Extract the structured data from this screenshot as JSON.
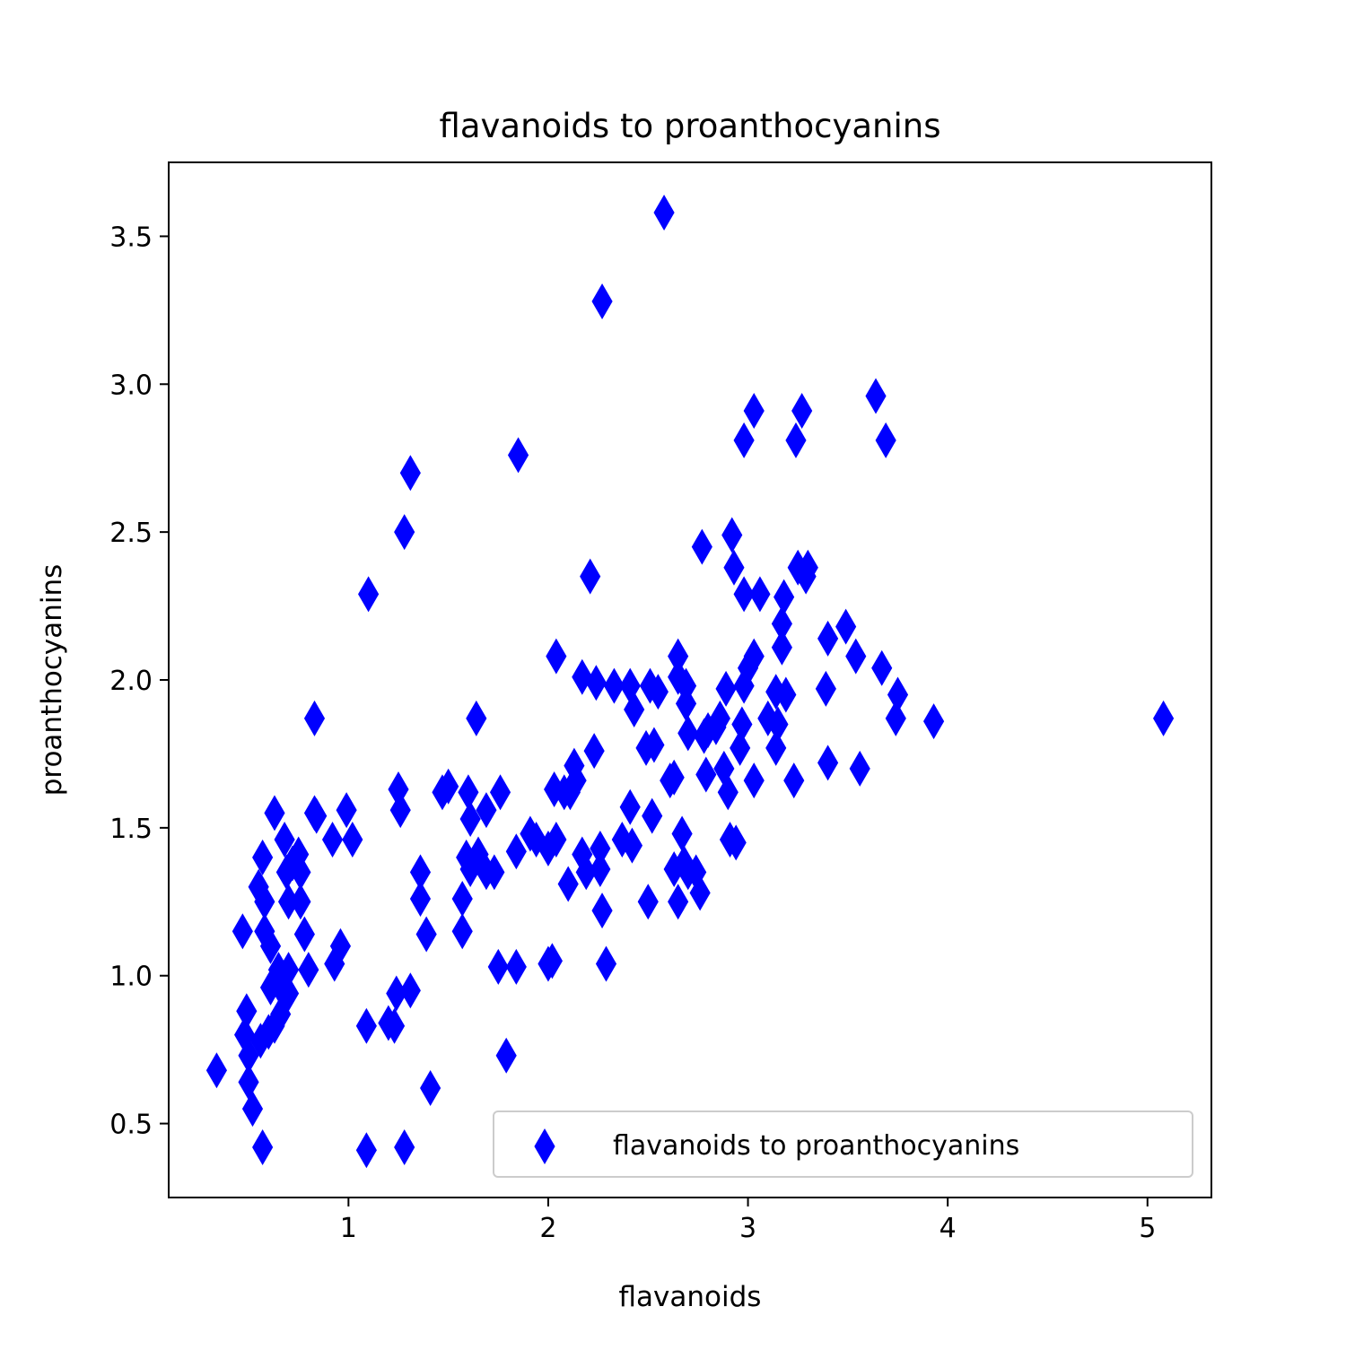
{
  "chart_data": {
    "type": "scatter",
    "title": "flavanoids to proanthocyanins",
    "xlabel": "flavanoids",
    "ylabel": "proanthocyanins",
    "xlim": [
      0.1,
      5.32
    ],
    "ylim": [
      0.25,
      3.75
    ],
    "xticks": [
      1,
      2,
      3,
      4,
      5
    ],
    "xtick_labels": [
      "1",
      "2",
      "3",
      "4",
      "5"
    ],
    "yticks": [
      0.5,
      1.0,
      1.5,
      2.0,
      2.5,
      3.0,
      3.5
    ],
    "ytick_labels": [
      "0.5",
      "1.0",
      "1.5",
      "2.0",
      "2.5",
      "3.0",
      "3.5"
    ],
    "grid": false,
    "legend_position": "lower-right",
    "series": [
      {
        "name": "flavanoids to proanthocyanins",
        "color": "#0000ff",
        "marker": "thin-diamond",
        "points": [
          [
            0.34,
            0.68
          ],
          [
            0.47,
            1.15
          ],
          [
            0.48,
            0.8
          ],
          [
            0.49,
            0.88
          ],
          [
            0.5,
            0.73
          ],
          [
            0.5,
            0.64
          ],
          [
            0.52,
            0.55
          ],
          [
            0.55,
            1.3
          ],
          [
            0.56,
            0.78
          ],
          [
            0.57,
            0.42
          ],
          [
            0.57,
            1.4
          ],
          [
            0.58,
            1.25
          ],
          [
            0.58,
            1.15
          ],
          [
            0.6,
            0.81
          ],
          [
            0.61,
            1.1
          ],
          [
            0.61,
            0.96
          ],
          [
            0.63,
            1.55
          ],
          [
            0.63,
            0.83
          ],
          [
            0.65,
            1.02
          ],
          [
            0.66,
            0.87
          ],
          [
            0.66,
            0.96
          ],
          [
            0.68,
            1.46
          ],
          [
            0.69,
            1.35
          ],
          [
            0.7,
            1.25
          ],
          [
            0.7,
            1.02
          ],
          [
            0.7,
            0.94
          ],
          [
            0.72,
            1.38
          ],
          [
            0.75,
            1.41
          ],
          [
            0.76,
            1.35
          ],
          [
            0.76,
            1.25
          ],
          [
            0.78,
            1.14
          ],
          [
            0.8,
            1.02
          ],
          [
            0.83,
            1.87
          ],
          [
            0.83,
            1.55
          ],
          [
            0.84,
            1.54
          ],
          [
            0.92,
            1.46
          ],
          [
            0.93,
            1.04
          ],
          [
            0.96,
            1.1
          ],
          [
            0.99,
            1.56
          ],
          [
            1.02,
            1.46
          ],
          [
            1.09,
            0.83
          ],
          [
            1.1,
            2.29
          ],
          [
            1.09,
            0.41
          ],
          [
            1.2,
            0.84
          ],
          [
            1.23,
            0.83
          ],
          [
            1.24,
            0.94
          ],
          [
            1.25,
            1.63
          ],
          [
            1.26,
            1.56
          ],
          [
            1.28,
            2.5
          ],
          [
            1.28,
            0.42
          ],
          [
            1.31,
            2.7
          ],
          [
            1.31,
            0.95
          ],
          [
            1.36,
            1.35
          ],
          [
            1.36,
            1.26
          ],
          [
            1.39,
            1.14
          ],
          [
            1.41,
            0.62
          ],
          [
            1.47,
            1.62
          ],
          [
            1.5,
            1.64
          ],
          [
            1.57,
            1.26
          ],
          [
            1.57,
            1.15
          ],
          [
            1.59,
            1.4
          ],
          [
            1.6,
            1.62
          ],
          [
            1.61,
            1.53
          ],
          [
            1.61,
            1.36
          ],
          [
            1.64,
            1.87
          ],
          [
            1.65,
            1.41
          ],
          [
            1.69,
            1.35
          ],
          [
            1.69,
            1.56
          ],
          [
            1.73,
            1.35
          ],
          [
            1.75,
            1.03
          ],
          [
            1.76,
            1.62
          ],
          [
            1.79,
            0.73
          ],
          [
            1.84,
            1.03
          ],
          [
            1.84,
            1.42
          ],
          [
            1.85,
            2.76
          ],
          [
            1.91,
            1.48
          ],
          [
            1.94,
            1.46
          ],
          [
            2.0,
            1.04
          ],
          [
            2.0,
            1.43
          ],
          [
            2.02,
            1.05
          ],
          [
            2.03,
            1.63
          ],
          [
            2.04,
            1.46
          ],
          [
            2.04,
            2.08
          ],
          [
            2.08,
            1.62
          ],
          [
            2.1,
            1.31
          ],
          [
            2.11,
            1.62
          ],
          [
            2.13,
            1.71
          ],
          [
            2.14,
            1.66
          ],
          [
            2.17,
            2.01
          ],
          [
            2.17,
            1.41
          ],
          [
            2.19,
            1.35
          ],
          [
            2.21,
            2.35
          ],
          [
            2.23,
            1.76
          ],
          [
            2.24,
            1.99
          ],
          [
            2.26,
            1.36
          ],
          [
            2.26,
            1.43
          ],
          [
            2.27,
            1.22
          ],
          [
            2.27,
            3.28
          ],
          [
            2.29,
            1.04
          ],
          [
            2.33,
            1.98
          ],
          [
            2.37,
            1.46
          ],
          [
            2.41,
            1.98
          ],
          [
            2.41,
            1.57
          ],
          [
            2.42,
            1.44
          ],
          [
            2.43,
            1.9
          ],
          [
            2.49,
            1.77
          ],
          [
            2.5,
            1.25
          ],
          [
            2.51,
            1.98
          ],
          [
            2.52,
            1.54
          ],
          [
            2.53,
            1.78
          ],
          [
            2.55,
            1.96
          ],
          [
            2.58,
            3.58
          ],
          [
            2.61,
            1.66
          ],
          [
            2.63,
            1.67
          ],
          [
            2.63,
            1.36
          ],
          [
            2.65,
            1.25
          ],
          [
            2.65,
            2.08
          ],
          [
            2.65,
            2.01
          ],
          [
            2.67,
            1.48
          ],
          [
            2.68,
            1.38
          ],
          [
            2.69,
            1.98
          ],
          [
            2.69,
            1.92
          ],
          [
            2.7,
            1.35
          ],
          [
            2.7,
            1.82
          ],
          [
            2.74,
            1.35
          ],
          [
            2.76,
            1.28
          ],
          [
            2.77,
            2.45
          ],
          [
            2.78,
            1.81
          ],
          [
            2.79,
            1.68
          ],
          [
            2.8,
            1.83
          ],
          [
            2.84,
            1.84
          ],
          [
            2.86,
            1.87
          ],
          [
            2.88,
            1.7
          ],
          [
            2.89,
            1.97
          ],
          [
            2.9,
            1.62
          ],
          [
            2.91,
            1.46
          ],
          [
            2.92,
            2.49
          ],
          [
            2.93,
            2.38
          ],
          [
            2.94,
            1.45
          ],
          [
            2.96,
            1.77
          ],
          [
            2.97,
            1.85
          ],
          [
            2.98,
            2.29
          ],
          [
            2.98,
            2.81
          ],
          [
            2.98,
            1.98
          ],
          [
            3.0,
            2.04
          ],
          [
            3.03,
            1.66
          ],
          [
            3.03,
            2.08
          ],
          [
            3.03,
            2.91
          ],
          [
            3.06,
            2.29
          ],
          [
            3.1,
            1.87
          ],
          [
            3.14,
            1.96
          ],
          [
            3.14,
            1.77
          ],
          [
            3.15,
            1.85
          ],
          [
            3.17,
            2.11
          ],
          [
            3.17,
            2.19
          ],
          [
            3.18,
            2.28
          ],
          [
            3.19,
            1.95
          ],
          [
            3.23,
            1.66
          ],
          [
            3.24,
            2.81
          ],
          [
            3.25,
            2.38
          ],
          [
            3.27,
            2.91
          ],
          [
            3.29,
            2.35
          ],
          [
            3.3,
            2.38
          ],
          [
            3.4,
            1.72
          ],
          [
            3.39,
            1.97
          ],
          [
            3.4,
            2.14
          ],
          [
            3.49,
            2.18
          ],
          [
            3.54,
            2.08
          ],
          [
            3.56,
            1.7
          ],
          [
            3.64,
            2.96
          ],
          [
            3.67,
            2.04
          ],
          [
            3.69,
            2.81
          ],
          [
            3.74,
            1.87
          ],
          [
            3.75,
            1.95
          ],
          [
            3.93,
            1.86
          ],
          [
            5.08,
            1.87
          ]
        ]
      }
    ]
  }
}
